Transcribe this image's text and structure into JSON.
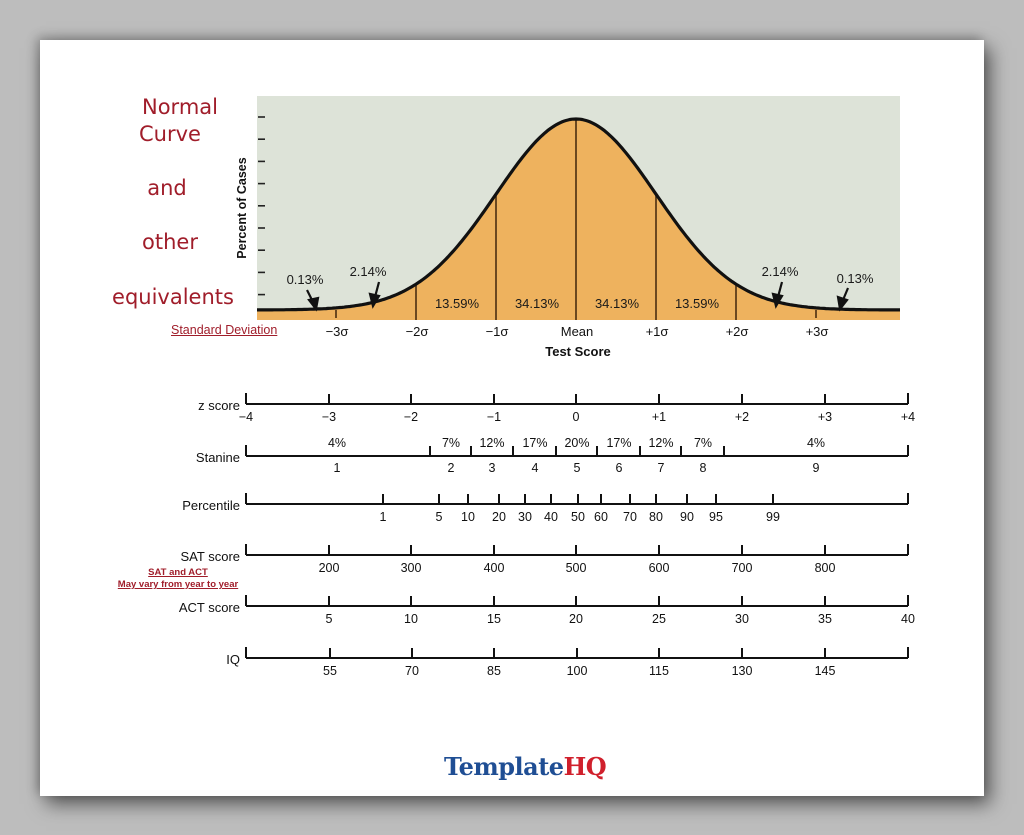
{
  "title": {
    "lines": [
      "Normal",
      "Curve",
      "and",
      "other",
      "equivalents"
    ]
  },
  "std_dev_label": "Standard Deviation",
  "scale_note": {
    "line1": "SAT and ACT",
    "line2": "May vary from year to year"
  },
  "brand": {
    "part1": "Template",
    "part2": "HQ"
  },
  "colors": {
    "title_red": "#a01d2a",
    "curve_fill": "#eeb25e",
    "chart_bg": "#dde3d8",
    "brand_blue": "#1f4e94",
    "brand_red": "#d0202c"
  },
  "chart_data": [
    {
      "type": "area",
      "title": "Normal Curve",
      "xlabel": "Test Score",
      "ylabel": "Percent of Cases",
      "x_ticks": [
        "-3σ",
        "-2σ",
        "-1σ",
        "Mean",
        "+1σ",
        "+2σ",
        "+3σ"
      ],
      "x_tick_values": [
        -3,
        -2,
        -1,
        0,
        1,
        2,
        3
      ],
      "segments": [
        {
          "range": [
            -4,
            -3
          ],
          "percent": "0.13%"
        },
        {
          "range": [
            -3,
            -2
          ],
          "percent": "2.14%"
        },
        {
          "range": [
            -2,
            -1
          ],
          "percent": "13.59%"
        },
        {
          "range": [
            -1,
            0
          ],
          "percent": "34.13%"
        },
        {
          "range": [
            0,
            1
          ],
          "percent": "34.13%"
        },
        {
          "range": [
            1,
            2
          ],
          "percent": "13.59%"
        },
        {
          "range": [
            2,
            3
          ],
          "percent": "2.14%"
        },
        {
          "range": [
            3,
            4
          ],
          "percent": "0.13%"
        }
      ],
      "y_tick_count": 9,
      "grid": false
    },
    {
      "type": "table",
      "title": "Equivalent scales",
      "scales": [
        {
          "name": "z score",
          "ticks": [
            "-4",
            "-3",
            "-2",
            "-1",
            "0",
            "+1",
            "+2",
            "+3",
            "+4"
          ]
        },
        {
          "name": "Stanine",
          "bands": [
            {
              "stanine": "1",
              "percent": "4%"
            },
            {
              "stanine": "2",
              "percent": "7%"
            },
            {
              "stanine": "3",
              "percent": "12%"
            },
            {
              "stanine": "4",
              "percent": "17%"
            },
            {
              "stanine": "5",
              "percent": "20%"
            },
            {
              "stanine": "6",
              "percent": "17%"
            },
            {
              "stanine": "7",
              "percent": "12%"
            },
            {
              "stanine": "8",
              "percent": "7%"
            },
            {
              "stanine": "9",
              "percent": "4%"
            }
          ]
        },
        {
          "name": "Percentile",
          "ticks": [
            "1",
            "5",
            "10",
            "20",
            "30",
            "40",
            "50",
            "60",
            "70",
            "80",
            "90",
            "95",
            "99"
          ]
        },
        {
          "name": "SAT score",
          "ticks": [
            "200",
            "300",
            "400",
            "500",
            "600",
            "700",
            "800"
          ]
        },
        {
          "name": "ACT score",
          "ticks": [
            "5",
            "10",
            "15",
            "20",
            "25",
            "30",
            "35",
            "40"
          ]
        },
        {
          "name": "IQ",
          "ticks": [
            "55",
            "70",
            "85",
            "100",
            "115",
            "130",
            "145"
          ]
        }
      ]
    }
  ],
  "curve": {
    "ylabel": "Percent of Cases",
    "xlabel": "Test Score",
    "sigma_labels": [
      "−3σ",
      "−2σ",
      "−1σ",
      "Mean",
      "+1σ",
      "+2σ",
      "+3σ"
    ],
    "region_labels": [
      "13.59%",
      "34.13%",
      "34.13%",
      "13.59%"
    ],
    "tail_labels": [
      "0.13%",
      "2.14%",
      "2.14%",
      "0.13%"
    ]
  },
  "scales": {
    "z": {
      "label": "z score",
      "ticks": [
        "−4",
        "−3",
        "−2",
        "−1",
        "0",
        "+1",
        "+2",
        "+3",
        "+4"
      ]
    },
    "stanine": {
      "label": "Stanine",
      "percents": [
        "4%",
        "7%",
        "12%",
        "17%",
        "20%",
        "17%",
        "12%",
        "7%",
        "4%"
      ],
      "numbers": [
        "1",
        "2",
        "3",
        "4",
        "5",
        "6",
        "7",
        "8",
        "9"
      ]
    },
    "percentile": {
      "label": "Percentile",
      "ticks": [
        "1",
        "5",
        "10",
        "20",
        "30",
        "40",
        "50",
        "60",
        "70",
        "80",
        "90",
        "95",
        "99"
      ]
    },
    "sat": {
      "label": "SAT score",
      "ticks": [
        "200",
        "300",
        "400",
        "500",
        "600",
        "700",
        "800"
      ]
    },
    "act": {
      "label": "ACT score",
      "ticks": [
        "5",
        "10",
        "15",
        "20",
        "25",
        "30",
        "35",
        "40"
      ]
    },
    "iq": {
      "label": "IQ",
      "ticks": [
        "55",
        "70",
        "85",
        "100",
        "115",
        "130",
        "145"
      ]
    }
  }
}
